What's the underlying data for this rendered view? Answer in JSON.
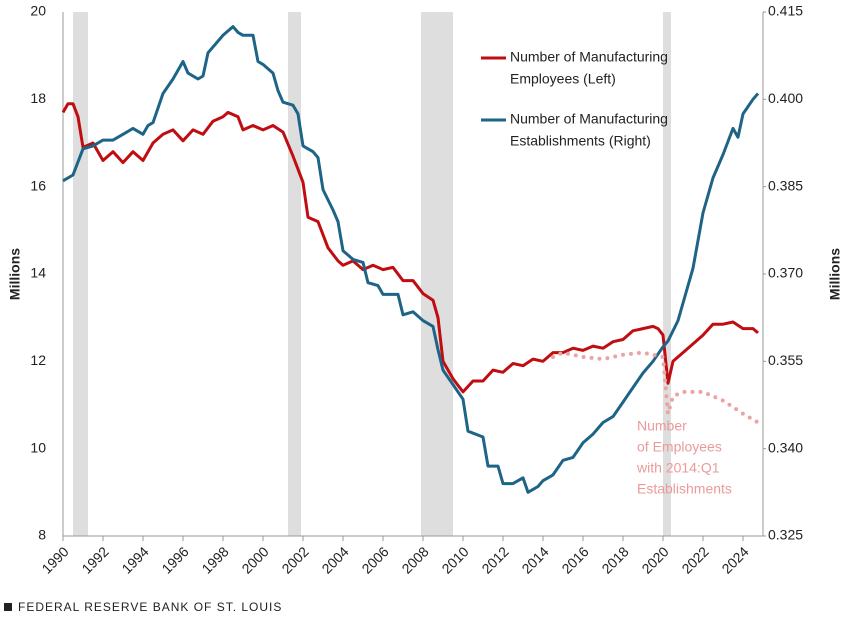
{
  "chart_data": {
    "type": "line",
    "y_axis_label": "Millions",
    "y2_axis_label": "Millions",
    "xlim": [
      1990,
      2025
    ],
    "xticks": [
      1990,
      1992,
      1994,
      1996,
      1998,
      2000,
      2002,
      2004,
      2006,
      2008,
      2010,
      2012,
      2014,
      2016,
      2018,
      2020,
      2022,
      2024
    ],
    "ylim": [
      8,
      20
    ],
    "yticks": [
      8,
      10,
      12,
      14,
      16,
      18,
      20
    ],
    "y2lim": [
      0.325,
      0.415
    ],
    "y2ticks": [
      0.325,
      {
        "value": 0.34,
        "label": "0.340"
      },
      0.355,
      {
        "value": 0.37,
        "label": "0.370"
      },
      0.385,
      {
        "value": 0.4,
        "label": "0.400"
      },
      0.415
    ],
    "grid": false,
    "recessions": [
      [
        1990.5,
        1991.25
      ],
      [
        2001.25,
        2001.9
      ],
      [
        2007.9,
        2009.5
      ],
      [
        2020.0,
        2020.4
      ]
    ],
    "recession_color": "#dedede",
    "series": [
      {
        "name": [
          "Number of Manufacturing",
          "Employees (Left)"
        ],
        "color": "#c00d12",
        "axis": "y",
        "style": "solid",
        "x": [
          1990,
          1990.25,
          1990.5,
          1990.75,
          1991,
          1991.5,
          1992,
          1992.5,
          1993,
          1993.5,
          1994,
          1994.5,
          1995,
          1995.5,
          1996,
          1996.5,
          1997,
          1997.5,
          1998,
          1998.25,
          1998.75,
          1999,
          1999.5,
          2000,
          2000.5,
          2001,
          2001.5,
          2002,
          2002.25,
          2002.75,
          2003,
          2003.25,
          2003.75,
          2004,
          2004.5,
          2005,
          2005.5,
          2006,
          2006.5,
          2007,
          2007.5,
          2008,
          2008.5,
          2008.75,
          2009,
          2009.5,
          2010,
          2010.5,
          2011,
          2011.5,
          2012,
          2012.5,
          2013,
          2013.5,
          2014,
          2014.5,
          2015,
          2015.5,
          2016,
          2016.5,
          2017,
          2017.5,
          2018,
          2018.5,
          2019,
          2019.5,
          2019.75,
          2020,
          2020.25,
          2020.5,
          2021,
          2021.5,
          2022,
          2022.5,
          2023,
          2023.5,
          2024,
          2024.5,
          2024.75
        ],
        "values": [
          17.7,
          17.9,
          17.9,
          17.6,
          16.9,
          17.0,
          16.6,
          16.8,
          16.55,
          16.8,
          16.6,
          17.0,
          17.2,
          17.3,
          17.05,
          17.3,
          17.2,
          17.5,
          17.6,
          17.7,
          17.6,
          17.3,
          17.4,
          17.3,
          17.4,
          17.25,
          16.7,
          16.1,
          15.3,
          15.2,
          14.9,
          14.6,
          14.3,
          14.2,
          14.3,
          14.1,
          14.2,
          14.1,
          14.15,
          13.85,
          13.85,
          13.55,
          13.4,
          13.0,
          12.0,
          11.6,
          11.3,
          11.55,
          11.55,
          11.8,
          11.75,
          11.95,
          11.9,
          12.05,
          12.0,
          12.2,
          12.2,
          12.3,
          12.25,
          12.35,
          12.3,
          12.45,
          12.5,
          12.7,
          12.75,
          12.8,
          12.75,
          12.6,
          11.5,
          12.0,
          12.2,
          12.4,
          12.6,
          12.85,
          12.85,
          12.9,
          12.75,
          12.75,
          12.65
        ]
      },
      {
        "name": [
          "Number of Manufacturing",
          "Establishments (Right)"
        ],
        "color": "#1d6487",
        "axis": "y2",
        "style": "solid",
        "x": [
          1990,
          1990.5,
          1991,
          1991.5,
          1992,
          1992.5,
          1993,
          1993.5,
          1994,
          1994.25,
          1994.5,
          1995,
          1995.5,
          1996,
          1996.25,
          1996.75,
          1997,
          1997.25,
          1997.75,
          1998,
          1998.5,
          1998.75,
          1999,
          1999.5,
          1999.75,
          2000,
          2000.5,
          2000.75,
          2001,
          2001.5,
          2001.75,
          2002,
          2002.5,
          2002.75,
          2003,
          2003.5,
          2003.75,
          2004,
          2004.5,
          2005,
          2005.25,
          2005.75,
          2006,
          2006.75,
          2007,
          2007.5,
          2008,
          2008.5,
          2008.75,
          2009,
          2009.5,
          2010,
          2010.25,
          2011,
          2011.25,
          2011.75,
          2012,
          2012.5,
          2013,
          2013.25,
          2013.75,
          2014,
          2014.5,
          2015,
          2015.5,
          2016,
          2016.5,
          2017,
          2017.5,
          2018,
          2018.5,
          2019,
          2019.5,
          2020,
          2020.25,
          2020.75,
          2021,
          2021.5,
          2022,
          2022.5,
          2023,
          2023.5,
          2023.75,
          2024,
          2024.5,
          2024.75
        ],
        "values": [
          0.386,
          0.387,
          0.3915,
          0.392,
          0.393,
          0.393,
          0.394,
          0.395,
          0.394,
          0.3955,
          0.396,
          0.401,
          0.4035,
          0.4065,
          0.4045,
          0.4035,
          0.404,
          0.408,
          0.41,
          0.411,
          0.4125,
          0.4115,
          0.411,
          0.411,
          0.4065,
          0.406,
          0.4045,
          0.4015,
          0.3995,
          0.399,
          0.3975,
          0.392,
          0.391,
          0.39,
          0.3845,
          0.381,
          0.379,
          0.374,
          0.3725,
          0.372,
          0.3685,
          0.368,
          0.3665,
          0.3665,
          0.363,
          0.3635,
          0.362,
          0.361,
          0.357,
          0.3535,
          0.351,
          0.3485,
          0.343,
          0.342,
          0.337,
          0.337,
          0.334,
          0.334,
          0.335,
          0.3325,
          0.3335,
          0.3345,
          0.3355,
          0.338,
          0.3385,
          0.341,
          0.3425,
          0.3445,
          0.3455,
          0.348,
          0.3505,
          0.353,
          0.355,
          0.3575,
          0.3585,
          0.362,
          0.365,
          0.371,
          0.3805,
          0.3865,
          0.3905,
          0.395,
          0.3935,
          0.3975,
          0.4,
          0.401
        ]
      },
      {
        "color": "#eba3a3",
        "axis": "y",
        "style": "dotted",
        "x": [
          2014.5,
          2015,
          2016,
          2017,
          2018,
          2019,
          2020,
          2020.25,
          2020.5,
          2021,
          2022,
          2023,
          2024,
          2024.75
        ],
        "values": [
          12.1,
          12.2,
          12.1,
          12.05,
          12.15,
          12.2,
          12.1,
          10.8,
          11.2,
          11.3,
          11.3,
          11.1,
          10.8,
          10.6
        ]
      }
    ],
    "annotation": {
      "lines": [
        "Number",
        "of Employees",
        "with 2014:Q1",
        "Establishments"
      ],
      "color": "#eb9a9a"
    },
    "source": "FEDERAL RESERVE BANK OF ST. LOUIS"
  }
}
